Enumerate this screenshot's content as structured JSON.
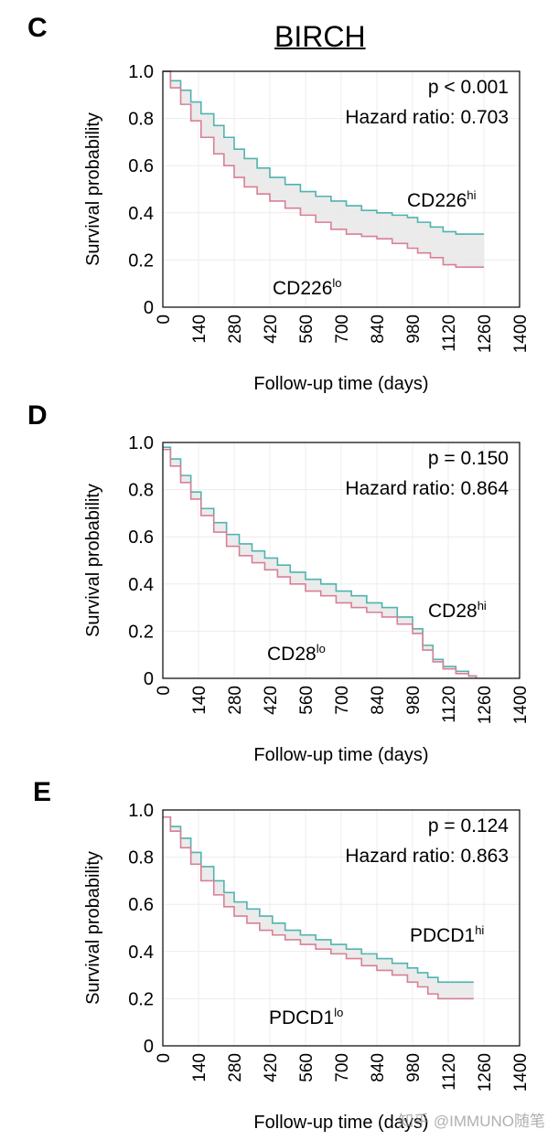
{
  "title": "BIRCH",
  "watermark": "知乎 @IMMUNO随笔",
  "colors": {
    "hi": "#4fb3ae",
    "lo": "#d97f95",
    "band": "#e8e8e8",
    "grid": "#ececec"
  },
  "chart_data": [
    {
      "panel": "C",
      "type": "line",
      "xlabel": "Follow-up time (days)",
      "ylabel": "Survival probability",
      "xlim": [
        0,
        1400
      ],
      "ylim": [
        0,
        1.0
      ],
      "xticks": [
        0,
        140,
        280,
        420,
        560,
        700,
        840,
        980,
        1120,
        1260,
        1400
      ],
      "yticks": [
        0,
        0.2,
        0.4,
        0.6,
        0.8,
        1.0
      ],
      "ytick_labels": [
        "0",
        "0.2",
        "0.4",
        "0.6",
        "0.8",
        "1.0"
      ],
      "p_text": "p  < 0.001",
      "hr_text": "Hazard ratio: 0.703",
      "series": [
        {
          "name": "CD226",
          "sup": "hi",
          "key": "hi",
          "x": [
            0,
            30,
            70,
            110,
            150,
            200,
            240,
            280,
            320,
            370,
            420,
            480,
            540,
            600,
            660,
            720,
            780,
            840,
            900,
            960,
            1000,
            1050,
            1100,
            1150,
            1200,
            1260
          ],
          "y": [
            1.0,
            0.96,
            0.92,
            0.87,
            0.82,
            0.77,
            0.72,
            0.67,
            0.63,
            0.59,
            0.55,
            0.52,
            0.49,
            0.47,
            0.45,
            0.43,
            0.41,
            0.4,
            0.39,
            0.38,
            0.36,
            0.34,
            0.32,
            0.31,
            0.31,
            0.31
          ]
        },
        {
          "name": "CD226",
          "sup": "lo",
          "key": "lo",
          "x": [
            0,
            30,
            70,
            110,
            150,
            200,
            240,
            280,
            320,
            370,
            420,
            480,
            540,
            600,
            660,
            720,
            780,
            840,
            900,
            960,
            1000,
            1050,
            1100,
            1150,
            1200,
            1260
          ],
          "y": [
            1.0,
            0.93,
            0.86,
            0.79,
            0.72,
            0.65,
            0.6,
            0.55,
            0.51,
            0.48,
            0.45,
            0.42,
            0.39,
            0.36,
            0.33,
            0.31,
            0.3,
            0.29,
            0.27,
            0.25,
            0.23,
            0.21,
            0.18,
            0.17,
            0.17,
            0.17
          ]
        }
      ]
    },
    {
      "panel": "D",
      "type": "line",
      "xlabel": "Follow-up time (days)",
      "ylabel": "Survival probability",
      "xlim": [
        0,
        1400
      ],
      "ylim": [
        0,
        1.0
      ],
      "xticks": [
        0,
        140,
        280,
        420,
        560,
        700,
        840,
        980,
        1120,
        1260,
        1400
      ],
      "yticks": [
        0,
        0.2,
        0.4,
        0.6,
        0.8,
        1.0
      ],
      "ytick_labels": [
        "0",
        "0.2",
        "0.4",
        "0.6",
        "0.8",
        "1.0"
      ],
      "p_text": "p  = 0.150",
      "hr_text": "Hazard ratio: 0.864",
      "series": [
        {
          "name": "CD28",
          "sup": "hi",
          "key": "hi",
          "x": [
            0,
            30,
            70,
            110,
            150,
            200,
            250,
            300,
            350,
            400,
            450,
            500,
            560,
            620,
            680,
            740,
            800,
            860,
            920,
            980,
            1020,
            1060,
            1100,
            1150,
            1200,
            1230
          ],
          "y": [
            0.98,
            0.93,
            0.86,
            0.79,
            0.72,
            0.66,
            0.61,
            0.57,
            0.54,
            0.51,
            0.48,
            0.45,
            0.42,
            0.4,
            0.37,
            0.35,
            0.32,
            0.3,
            0.26,
            0.21,
            0.14,
            0.08,
            0.05,
            0.03,
            0.01,
            0.0
          ]
        },
        {
          "name": "CD28",
          "sup": "lo",
          "key": "lo",
          "x": [
            0,
            30,
            70,
            110,
            150,
            200,
            250,
            300,
            350,
            400,
            450,
            500,
            560,
            620,
            680,
            740,
            800,
            860,
            920,
            980,
            1020,
            1060,
            1100,
            1150,
            1200,
            1230
          ],
          "y": [
            0.97,
            0.9,
            0.83,
            0.76,
            0.69,
            0.62,
            0.56,
            0.52,
            0.49,
            0.46,
            0.43,
            0.4,
            0.37,
            0.35,
            0.32,
            0.3,
            0.28,
            0.26,
            0.23,
            0.19,
            0.12,
            0.07,
            0.04,
            0.02,
            0.01,
            0.0
          ]
        }
      ]
    },
    {
      "panel": "E",
      "type": "line",
      "xlabel": "Follow-up time (days)",
      "ylabel": "Survival probability",
      "xlim": [
        0,
        1400
      ],
      "ylim": [
        0,
        1.0
      ],
      "xticks": [
        0,
        140,
        280,
        420,
        560,
        700,
        840,
        980,
        1120,
        1260,
        1400
      ],
      "yticks": [
        0,
        0.2,
        0.4,
        0.6,
        0.8,
        1.0
      ],
      "ytick_labels": [
        "0",
        "0.2",
        "0.4",
        "0.6",
        "0.8",
        "1.0"
      ],
      "p_text": "p  = 0.124",
      "hr_text": "Hazard ratio: 0.863",
      "series": [
        {
          "name": "PDCD1",
          "sup": "hi",
          "key": "hi",
          "x": [
            0,
            30,
            70,
            110,
            150,
            200,
            240,
            280,
            330,
            380,
            430,
            480,
            540,
            600,
            660,
            720,
            780,
            840,
            900,
            960,
            1000,
            1040,
            1080,
            1120,
            1180,
            1220
          ],
          "y": [
            0.97,
            0.93,
            0.88,
            0.82,
            0.76,
            0.7,
            0.65,
            0.61,
            0.58,
            0.55,
            0.52,
            0.49,
            0.47,
            0.45,
            0.43,
            0.41,
            0.39,
            0.37,
            0.35,
            0.33,
            0.31,
            0.29,
            0.27,
            0.27,
            0.27,
            0.27
          ]
        },
        {
          "name": "PDCD1",
          "sup": "lo",
          "key": "lo",
          "x": [
            0,
            30,
            70,
            110,
            150,
            200,
            240,
            280,
            330,
            380,
            430,
            480,
            540,
            600,
            660,
            720,
            780,
            840,
            900,
            960,
            1000,
            1040,
            1080,
            1120,
            1180,
            1220
          ],
          "y": [
            0.97,
            0.91,
            0.84,
            0.77,
            0.7,
            0.64,
            0.59,
            0.55,
            0.52,
            0.49,
            0.47,
            0.45,
            0.43,
            0.41,
            0.39,
            0.37,
            0.34,
            0.32,
            0.3,
            0.27,
            0.25,
            0.22,
            0.2,
            0.2,
            0.2,
            0.2
          ]
        }
      ]
    }
  ]
}
